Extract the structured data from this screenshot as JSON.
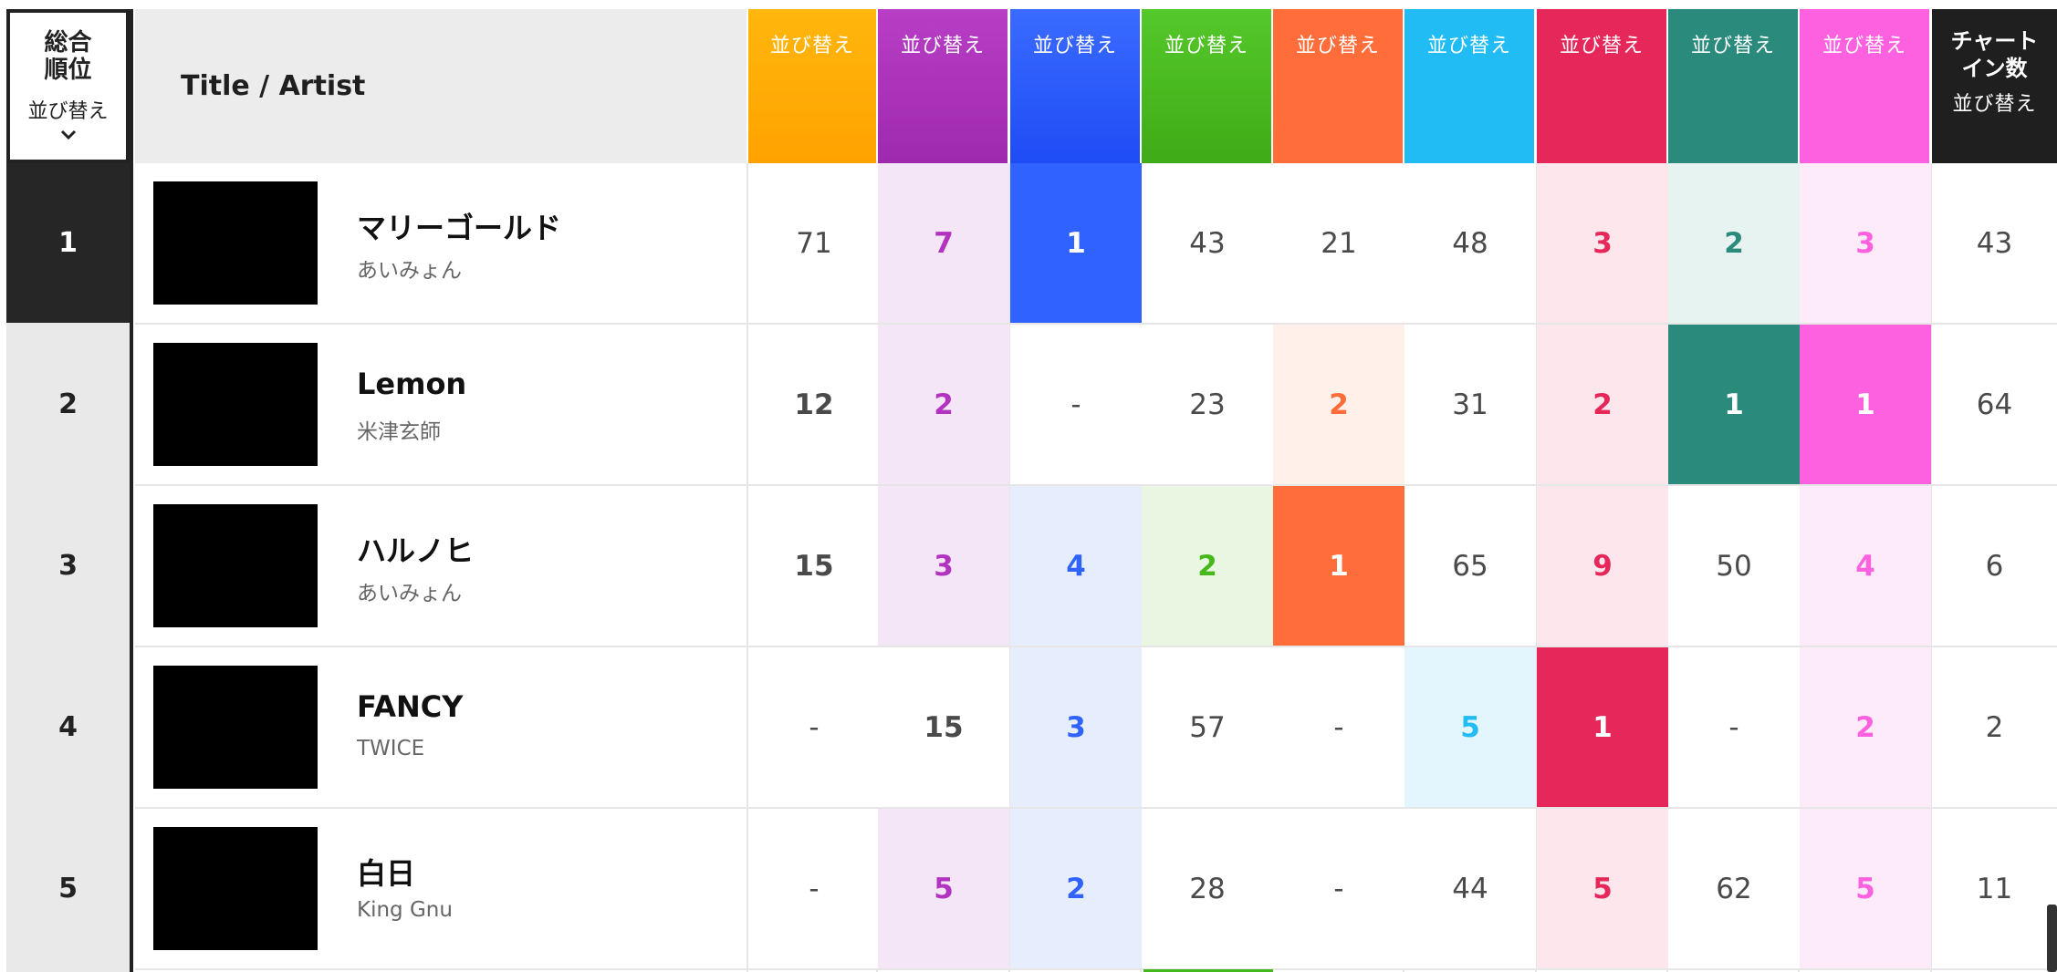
{
  "header": {
    "rank_title_line1": "総合",
    "rank_title_line2": "順位",
    "rank_sort": "並び替え",
    "title_artist": "Title / Artist",
    "sort_label": "並び替え",
    "chart_in_line1": "チャート",
    "chart_in_line2": "イン数"
  },
  "columns": [
    {
      "icon": "cd-disc-icon",
      "color": "#ffae00",
      "text": "#ff9a00",
      "tint": "#fff3dc"
    },
    {
      "icon": "download-icon",
      "color": "#b233bf",
      "text": "#b233bf",
      "tint": "#f4e6f7"
    },
    {
      "icon": "cloud-music-icon",
      "color": "#2f62ff",
      "text": "#2f62ff",
      "tint": "#e6edfc"
    },
    {
      "icon": "radio-broadcast-icon",
      "color": "#47b81c",
      "text": "#47b81c",
      "tint": "#e8f6e2"
    },
    {
      "icon": "pc-cd-icon",
      "color": "#ff6e3a",
      "text": "#ff6e3a",
      "tint": "#fff0ea"
    },
    {
      "icon": "twitter-icon",
      "color": "#22bcf5",
      "text": "#22bcf5",
      "tint": "#e4f6fd"
    },
    {
      "icon": "youtube-play-icon",
      "color": "#e6275a",
      "text": "#e6275a",
      "tint": "#fde7ec"
    },
    {
      "icon": "microphone-icon",
      "color": "#2a8a7c",
      "text": "#2a8a7c",
      "tint": "#e6f3f1"
    },
    {
      "icon": "venn-circles-icon",
      "color": "#fd61df",
      "text": "#fd61df",
      "tint": "#feebfa"
    },
    {
      "icon": "chart-in-count",
      "color": "#1f1f1f",
      "text": "#4a4a4a",
      "tint": "#ffffff"
    }
  ],
  "rows": [
    {
      "rank": "1",
      "title": "マリーゴールド",
      "artist": "あいみょん",
      "cells": [
        "71",
        "7",
        "1",
        "43",
        "21",
        "48",
        "3",
        "2",
        "3",
        "43"
      ]
    },
    {
      "rank": "2",
      "title": "Lemon",
      "artist": "米津玄師",
      "cells": [
        "12",
        "2",
        "-",
        "23",
        "2",
        "31",
        "2",
        "1",
        "1",
        "64"
      ]
    },
    {
      "rank": "3",
      "title": "ハルノヒ",
      "artist": "あいみょん",
      "cells": [
        "15",
        "3",
        "4",
        "2",
        "1",
        "65",
        "9",
        "50",
        "4",
        "6"
      ]
    },
    {
      "rank": "4",
      "title": "FANCY",
      "artist": "TWICE",
      "cells": [
        "-",
        "15",
        "3",
        "57",
        "-",
        "5",
        "1",
        "-",
        "2",
        "2"
      ]
    },
    {
      "rank": "5",
      "title": "白日",
      "artist": "King Gnu",
      "cells": [
        "-",
        "5",
        "2",
        "28",
        "-",
        "44",
        "5",
        "62",
        "5",
        "11"
      ]
    }
  ]
}
